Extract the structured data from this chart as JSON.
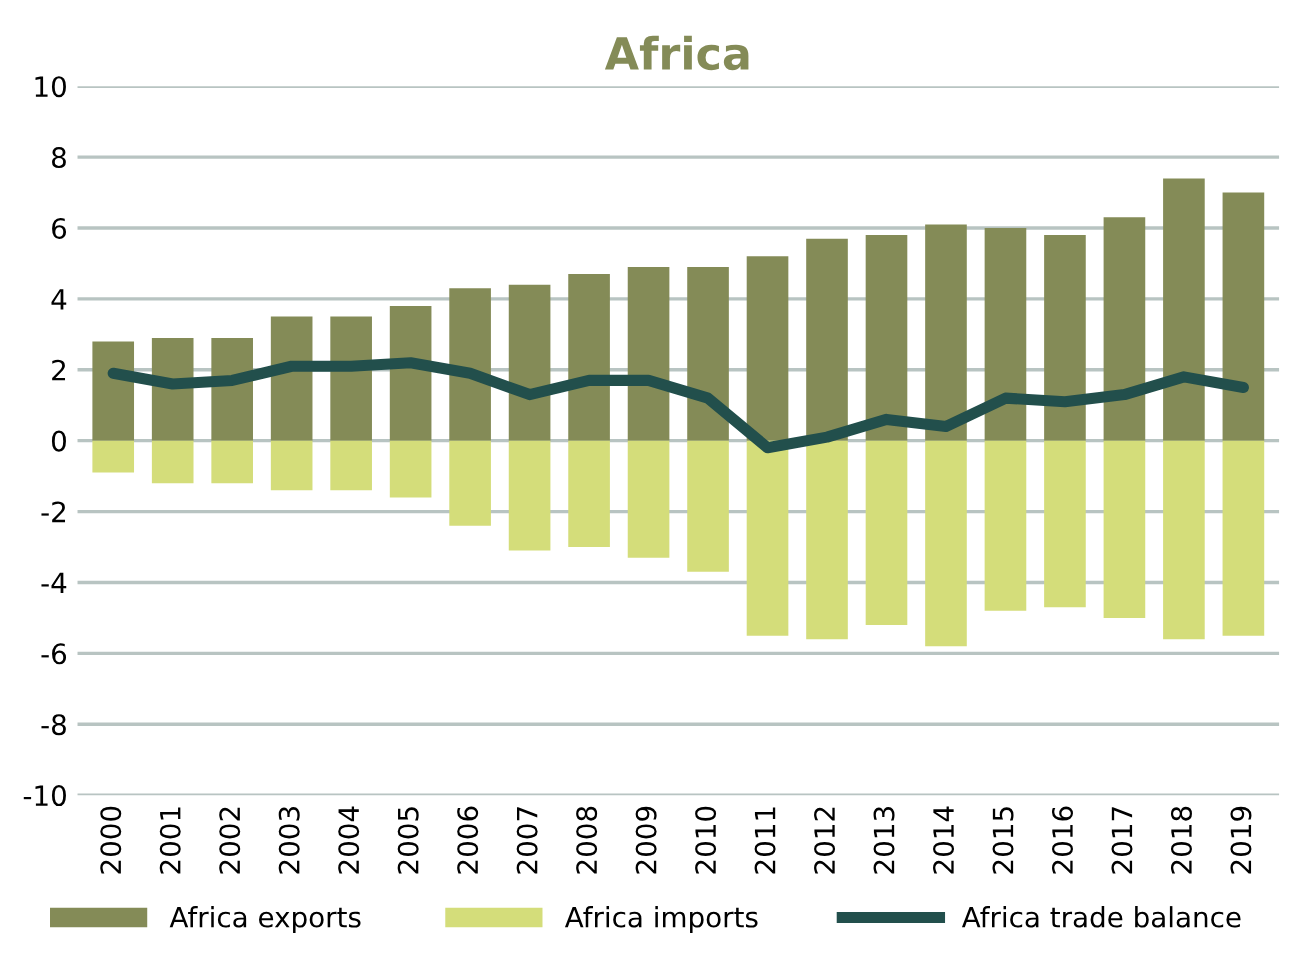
{
  "chart_data": {
    "type": "bar",
    "title": "Africa",
    "categories": [
      "2000",
      "2001",
      "2002",
      "2003",
      "2004",
      "2005",
      "2006",
      "2007",
      "2008",
      "2009",
      "2010",
      "2011",
      "2012",
      "2013",
      "2014",
      "2015",
      "2016",
      "2017",
      "2018",
      "2019"
    ],
    "series": [
      {
        "name": "Africa exports",
        "color": "#848b57",
        "values": [
          2.8,
          2.9,
          2.9,
          3.5,
          3.5,
          3.8,
          4.3,
          4.4,
          4.7,
          4.9,
          4.9,
          5.2,
          5.7,
          5.8,
          6.1,
          6.0,
          5.8,
          6.3,
          7.4,
          7.0
        ]
      },
      {
        "name": "Africa imports",
        "color": "#d4dd7a",
        "values": [
          -0.9,
          -1.2,
          -1.2,
          -1.4,
          -1.4,
          -1.6,
          -2.4,
          -3.1,
          -3.0,
          -3.3,
          -3.7,
          -5.5,
          -5.6,
          -5.2,
          -5.8,
          -4.8,
          -4.7,
          -5.0,
          -5.6,
          -5.5
        ]
      },
      {
        "name": "Africa trade balance",
        "type": "line",
        "color": "#224f4c",
        "values": [
          1.9,
          1.6,
          1.7,
          2.1,
          2.1,
          2.2,
          1.9,
          1.3,
          1.7,
          1.7,
          1.2,
          -0.2,
          0.1,
          0.6,
          0.4,
          1.2,
          1.1,
          1.3,
          1.8,
          1.5
        ]
      }
    ],
    "ylim": [
      -10,
      10
    ],
    "yticks": [
      -10,
      -8,
      -6,
      -4,
      -2,
      0,
      2,
      4,
      6,
      8,
      10
    ],
    "grid": "y",
    "legend": "bottom",
    "stacked": true
  }
}
